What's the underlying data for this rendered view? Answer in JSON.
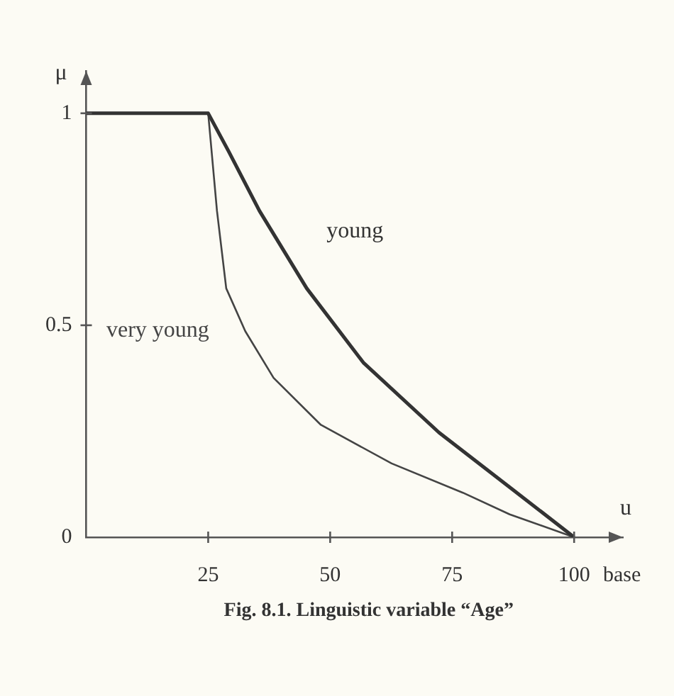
{
  "chart_data": {
    "type": "line",
    "ylabel": "μ",
    "xlabel": "u",
    "xlim": [
      0,
      110
    ],
    "ylim": [
      0,
      1.1
    ],
    "xticks": [
      25,
      50,
      75,
      100
    ],
    "yticks": [
      0,
      0.5,
      1
    ],
    "grid": false,
    "legend": false,
    "marker": "none",
    "line_style": "solid",
    "series": [
      {
        "name": "young",
        "color": "#333333",
        "x": [
          0,
          25,
          29.2,
          35.5,
          45.2,
          56.8,
          72.3,
          86.8,
          100
        ],
        "values": [
          1,
          1,
          0.91,
          0.77,
          0.587,
          0.412,
          0.247,
          0.118,
          0
        ]
      },
      {
        "name": "very young",
        "color": "#444444",
        "x": [
          0,
          25,
          26.8,
          28.7,
          32.6,
          38.4,
          48.1,
          62.6,
          77.2,
          86.8,
          100
        ],
        "values": [
          1,
          1,
          0.77,
          0.587,
          0.486,
          0.376,
          0.265,
          0.174,
          0.105,
          0.054,
          0
        ]
      }
    ],
    "annotations": [
      "base",
      "Fig. 8.1. Linguistic variable “Age”"
    ]
  }
}
